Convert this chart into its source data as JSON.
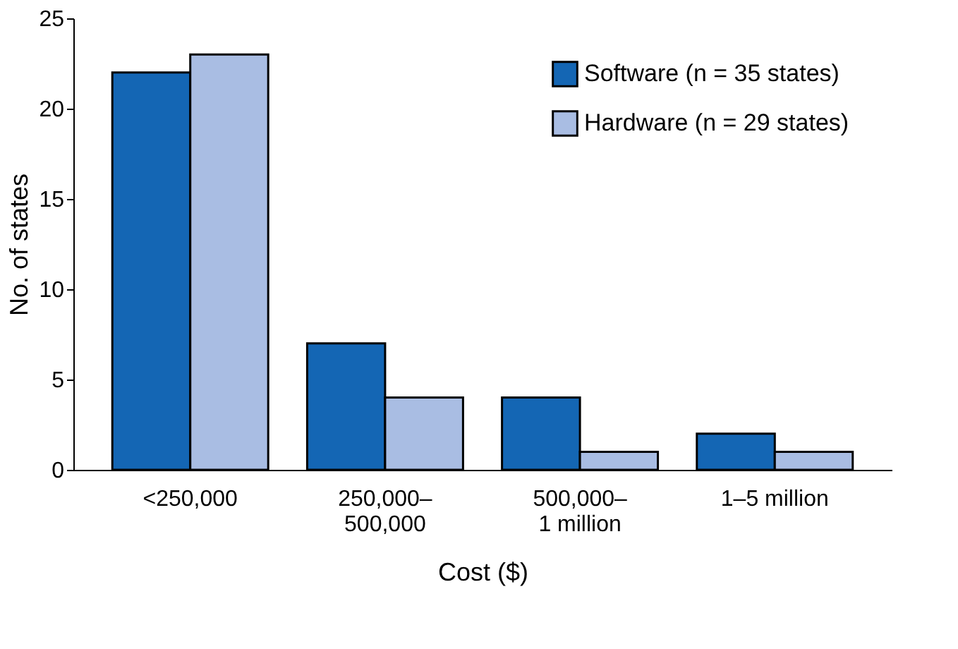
{
  "chart_data": {
    "type": "bar",
    "xlabel": "Cost ($)",
    "ylabel": "No. of states",
    "categories": [
      "<250,000",
      "250,000–\n500,000",
      "500,000–\n1 million",
      "1–5 million"
    ],
    "series": [
      {
        "name": "Software (n = 35 states)",
        "color": "#1466b4",
        "values": [
          22,
          7,
          4,
          2
        ]
      },
      {
        "name": "Hardware (n = 29 states)",
        "color": "#a9bde3",
        "values": [
          23,
          4,
          1,
          1
        ]
      }
    ],
    "ylim": [
      0,
      25
    ],
    "yticks": [
      0,
      5,
      10,
      15,
      20,
      25
    ],
    "grid": false,
    "legend": "top right"
  }
}
